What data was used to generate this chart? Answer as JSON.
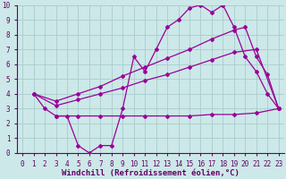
{
  "line1_x": [
    1,
    2,
    3,
    4,
    5,
    6,
    7,
    8,
    9,
    10,
    11,
    12,
    13,
    14,
    15,
    16,
    17,
    18,
    19,
    20,
    21,
    22,
    23
  ],
  "line1_y": [
    4,
    3,
    2.5,
    2.5,
    0.5,
    0,
    0.5,
    0.5,
    3,
    6.5,
    5.5,
    7,
    8.5,
    9,
    9.8,
    10,
    9.5,
    10,
    8.5,
    6.5,
    5.5,
    4,
    3
  ],
  "line2_x": [
    1,
    3,
    5,
    7,
    9,
    11,
    13,
    15,
    17,
    19,
    20,
    21,
    22,
    23
  ],
  "line2_y": [
    4.0,
    3.5,
    4.0,
    4.5,
    5.2,
    5.8,
    6.4,
    7.0,
    7.7,
    8.3,
    8.5,
    6.5,
    5.3,
    3.0
  ],
  "line3_x": [
    1,
    3,
    5,
    7,
    9,
    11,
    13,
    15,
    17,
    19,
    21,
    23
  ],
  "line3_y": [
    4.0,
    3.2,
    3.6,
    4.0,
    4.4,
    4.9,
    5.3,
    5.8,
    6.3,
    6.8,
    7.0,
    3.0
  ],
  "line4_x": [
    3,
    5,
    7,
    9,
    11,
    13,
    15,
    17,
    19,
    21,
    23
  ],
  "line4_y": [
    2.5,
    2.5,
    2.5,
    2.5,
    2.5,
    2.5,
    2.5,
    2.6,
    2.6,
    2.7,
    3.0
  ],
  "line_color": "#990099",
  "bg_color": "#cce8e8",
  "grid_color": "#aacccc",
  "xlabel": "Windchill (Refroidissement éolien,°C)",
  "xlim": [
    -0.5,
    23.5
  ],
  "ylim": [
    0,
    10
  ],
  "xticks": [
    0,
    1,
    2,
    3,
    4,
    5,
    6,
    7,
    8,
    9,
    10,
    11,
    12,
    13,
    14,
    15,
    16,
    17,
    18,
    19,
    20,
    21,
    22,
    23
  ],
  "yticks": [
    0,
    1,
    2,
    3,
    4,
    5,
    6,
    7,
    8,
    9,
    10
  ],
  "marker": "D",
  "markersize": 2,
  "linewidth": 0.9,
  "xlabel_fontsize": 6.5,
  "tick_fontsize": 5.5,
  "axis_color": "#660066"
}
